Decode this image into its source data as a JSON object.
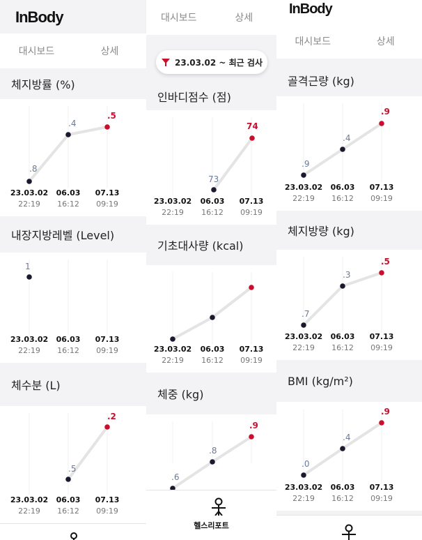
{
  "app": {
    "logo": "InBody"
  },
  "tabs": {
    "dashboard": "대시보드",
    "detail": "상세"
  },
  "filter": {
    "label": "23.03.02 ~ 최근 검사"
  },
  "nav": {
    "health_report": "헬스리포트"
  },
  "colors": {
    "accent": "#c8102e",
    "dot": "#1a1a2e",
    "line": "#e4e4e4",
    "value": "#6b7a99"
  },
  "dates": [
    {
      "date": "23.03.02",
      "time": "22:19"
    },
    {
      "date": "06.03",
      "time": "16:12"
    },
    {
      "date": "07.13",
      "time": "09:19"
    }
  ],
  "charts": {
    "body_fat_pct": {
      "title": "체지방률 (%)",
      "labels": [
        ".8",
        ".4",
        ".5"
      ],
      "values": [
        0.8,
        0.4,
        0.5
      ]
    },
    "visceral_fat": {
      "title": "내장지방레벨 (Level)",
      "labels": [
        "1",
        "",
        ""
      ],
      "values": [
        1,
        null,
        null
      ]
    },
    "body_water": {
      "title": "체수분 (L)",
      "labels": [
        "",
        ".5",
        ".2"
      ],
      "values": [
        null,
        0.5,
        0.2
      ]
    },
    "inbody_score": {
      "title": "인바디점수 (점)",
      "labels": [
        "",
        "73",
        "74"
      ],
      "values": [
        null,
        73,
        74
      ]
    },
    "bmr": {
      "title": "기초대사량 (kcal)",
      "labels": [
        "",
        "",
        ""
      ],
      "values": []
    },
    "weight": {
      "title": "체중 (kg)",
      "labels": [
        ".6",
        ".8",
        ".9"
      ],
      "values": [
        0.6,
        0.8,
        0.9
      ]
    },
    "skeletal_muscle": {
      "title": "골격근량 (kg)",
      "labels": [
        ".9",
        ".4",
        ".9"
      ],
      "values": [
        0.9,
        0.4,
        0.9
      ]
    },
    "body_fat_mass": {
      "title": "체지방량 (kg)",
      "labels": [
        ".7",
        ".3",
        ".5"
      ],
      "values": [
        0.7,
        0.3,
        0.5
      ]
    },
    "bmi": {
      "title": "BMI (kg/m²)",
      "labels": [
        ".0",
        ".4",
        ".9"
      ],
      "values": [
        0.0,
        0.4,
        0.9
      ]
    }
  }
}
